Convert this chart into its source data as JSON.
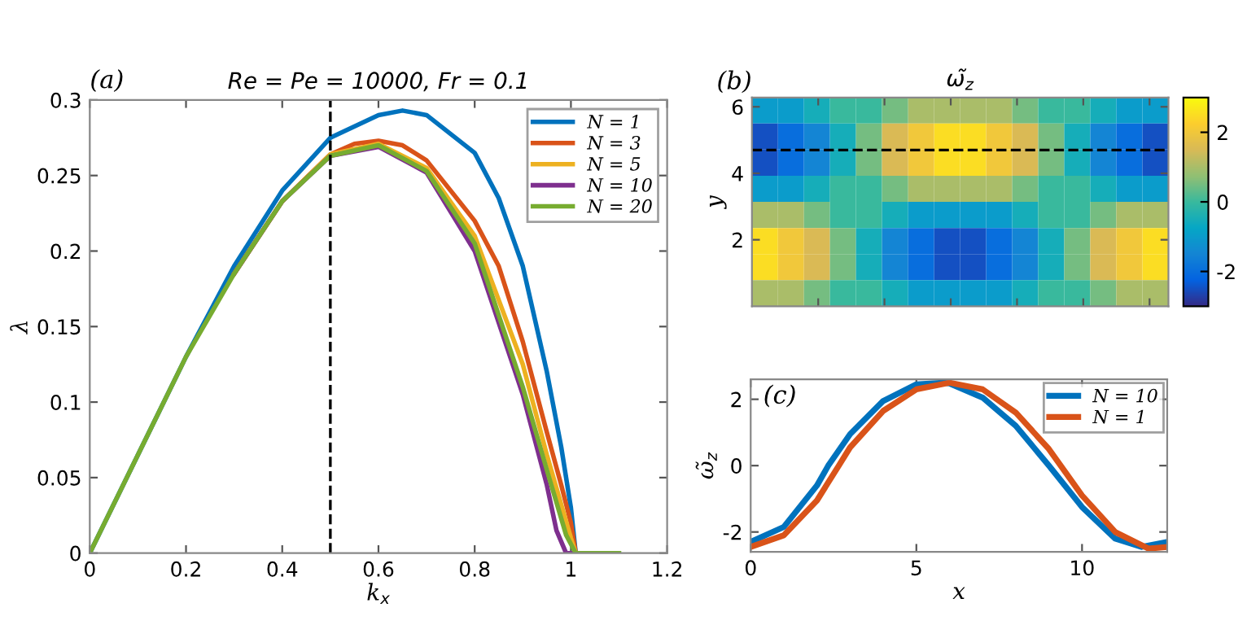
{
  "chart_data": [
    {
      "type": "line",
      "title": "Re = Pe = 10000, Fr = 0.1",
      "xlabel": "k$_{x}$",
      "ylabel": "λ",
      "annotations": [
        "(a)"
      ],
      "xlim": [
        0,
        1.2
      ],
      "ylim": [
        0,
        0.3
      ],
      "xticks": [
        0,
        0.2,
        0.4,
        0.6,
        0.8,
        1,
        1.2
      ],
      "yticks": [
        0,
        0.05,
        0.1,
        0.15,
        0.2,
        0.25,
        0.3
      ],
      "legend": "top right",
      "marker": "none",
      "line_style": "solid",
      "ref_lines": [
        {
          "axis": "x",
          "value": 0.5,
          "color": "#000000",
          "line_style": "dashed"
        }
      ],
      "series": [
        {
          "name": "N = 1",
          "color": "#0072bd",
          "x": [
            0,
            0.1,
            0.2,
            0.3,
            0.4,
            0.5,
            0.6,
            0.65,
            0.7,
            0.8,
            0.85,
            0.9,
            0.95,
            0.98,
            1.0,
            1.01
          ],
          "values": [
            0,
            0.065,
            0.13,
            0.19,
            0.24,
            0.275,
            0.29,
            0.293,
            0.29,
            0.265,
            0.235,
            0.19,
            0.12,
            0.07,
            0.03,
            0
          ]
        },
        {
          "name": "N = 3",
          "color": "#d95319",
          "x": [
            0.3,
            0.4,
            0.5,
            0.55,
            0.6,
            0.65,
            0.7,
            0.8,
            0.85,
            0.9,
            0.95,
            0.98,
            1.0,
            1.01
          ],
          "values": [
            0.185,
            0.233,
            0.264,
            0.271,
            0.273,
            0.27,
            0.26,
            0.22,
            0.19,
            0.14,
            0.08,
            0.045,
            0.02,
            0
          ]
        },
        {
          "name": "N = 5",
          "color": "#edb120",
          "x": [
            0.3,
            0.4,
            0.5,
            0.6,
            0.7,
            0.8,
            0.9,
            0.95,
            1.0,
            1.01
          ],
          "values": [
            0.185,
            0.233,
            0.264,
            0.271,
            0.255,
            0.21,
            0.125,
            0.065,
            0.01,
            0
          ]
        },
        {
          "name": "N = 10",
          "color": "#7e2f8e",
          "x": [
            0.3,
            0.4,
            0.5,
            0.6,
            0.7,
            0.8,
            0.9,
            0.95,
            0.97,
            0.99,
            1.01
          ],
          "values": [
            0.185,
            0.233,
            0.263,
            0.269,
            0.252,
            0.2,
            0.105,
            0.045,
            0.015,
            0,
            0
          ]
        },
        {
          "name": "N = 20",
          "color": "#77ac30",
          "x": [
            0,
            0.1,
            0.2,
            0.3,
            0.4,
            0.5,
            0.6,
            0.7,
            0.8,
            0.9,
            0.95,
            0.99,
            1.01,
            1.1
          ],
          "values": [
            0,
            0.065,
            0.13,
            0.185,
            0.233,
            0.263,
            0.27,
            0.253,
            0.205,
            0.11,
            0.055,
            0.012,
            0,
            0
          ]
        }
      ]
    },
    {
      "type": "heatmap",
      "title": "ω̃$_{z}$",
      "ylabel": "y",
      "annotations": [
        "(b)"
      ],
      "tick_labels": "y",
      "xlim": [
        0,
        12.57
      ],
      "ylim": [
        0,
        6.28
      ],
      "xticks": [
        {
          "value": 2,
          "label": null
        },
        {
          "value": 4,
          "label": null
        },
        {
          "value": 6,
          "label": null
        },
        {
          "value": 8,
          "label": null
        },
        {
          "value": 10,
          "label": null
        },
        {
          "value": 12,
          "label": null
        }
      ],
      "yticks": [
        2,
        4,
        6
      ],
      "clim": [
        -3,
        3
      ],
      "cticks": [
        -2,
        0,
        2
      ],
      "colors": [
        "#352a87",
        "#0363e1",
        "#1485d4",
        "#06a7c6",
        "#38b99e",
        "#92bf73",
        "#d9ba56",
        "#fcce2e",
        "#f9fb0e"
      ],
      "ref_lines": [
        {
          "axis": "y",
          "value": 4.7,
          "color": "#000000",
          "line_style": "dashed"
        }
      ],
      "x": [
        0.39,
        1.18,
        1.96,
        2.75,
        3.53,
        4.32,
        5.11,
        5.89,
        6.68,
        7.46,
        8.25,
        9.03,
        9.82,
        10.6,
        11.39,
        12.18
      ],
      "y": [
        5.89,
        5.11,
        4.32,
        3.53,
        2.75,
        1.96,
        1.18,
        0.39
      ],
      "cells": [
        [
          -1,
          -1,
          -0.5,
          0,
          0,
          0.5,
          1,
          1,
          1,
          1,
          0.5,
          0,
          0,
          -0.5,
          -1,
          -1
        ],
        [
          -2.5,
          -2,
          -1.5,
          -0.5,
          0.5,
          1.5,
          2,
          2.5,
          2.5,
          2,
          1.5,
          0.5,
          -0.5,
          -1.5,
          -2,
          -2.5
        ],
        [
          -2.5,
          -2,
          -1.5,
          -0.5,
          0.5,
          1.5,
          2,
          2.5,
          2.5,
          2,
          1.5,
          0.5,
          -0.5,
          -1.5,
          -2,
          -2.5
        ],
        [
          -1,
          -1,
          -0.5,
          0,
          0,
          0.5,
          1,
          1,
          1,
          1,
          0.5,
          0,
          0,
          -0.5,
          -1,
          -1
        ],
        [
          1,
          1,
          0.5,
          0,
          0,
          -0.5,
          -1,
          -1,
          -1,
          -1,
          -0.5,
          0,
          0,
          0.5,
          1,
          1
        ],
        [
          2.5,
          2,
          1.5,
          0.5,
          -0.5,
          -1.5,
          -2,
          -2.5,
          -2.5,
          -2,
          -1.5,
          -0.5,
          0.5,
          1.5,
          2,
          2.5
        ],
        [
          2.5,
          2,
          1.5,
          0.5,
          -0.5,
          -1.5,
          -2,
          -2.5,
          -2.5,
          -2,
          -1.5,
          -0.5,
          0.5,
          1.5,
          2,
          2.5
        ],
        [
          1,
          1,
          0.5,
          0,
          0,
          -0.5,
          -1,
          -1,
          -1,
          -1,
          -0.5,
          0,
          0,
          0.5,
          1,
          1
        ]
      ]
    },
    {
      "type": "line",
      "xlabel": "x",
      "ylabel": "ω̃$_{z}$",
      "annotations": [
        "(c)"
      ],
      "xlim": [
        0,
        12.57
      ],
      "ylim": [
        -2.6,
        2.6
      ],
      "xticks": [
        0,
        5,
        10
      ],
      "yticks": [
        -2,
        0,
        2
      ],
      "legend": "top right",
      "marker": "none",
      "line_style": "solid",
      "series": [
        {
          "name": "N = 10",
          "color": "#0072bd",
          "x": [
            0,
            1,
            2,
            2.34,
            3,
            4,
            5,
            5.8,
            6,
            7,
            8,
            9,
            10,
            11,
            11.8,
            12.57
          ],
          "values": [
            -2.3,
            -1.85,
            -0.6,
            0,
            0.95,
            1.95,
            2.45,
            2.5,
            2.48,
            2.05,
            1.2,
            0,
            -1.25,
            -2.2,
            -2.45,
            -2.3
          ]
        },
        {
          "name": "N = 1",
          "color": "#d95319",
          "x": [
            0,
            1,
            2,
            2.66,
            3,
            4,
            5,
            6,
            7,
            8,
            9,
            9.5,
            10,
            11,
            12,
            12.57
          ],
          "values": [
            -2.45,
            -2.1,
            -1.05,
            0,
            0.55,
            1.65,
            2.3,
            2.5,
            2.3,
            1.6,
            0.5,
            -0.2,
            -0.9,
            -2.0,
            -2.5,
            -2.45
          ]
        }
      ]
    }
  ]
}
